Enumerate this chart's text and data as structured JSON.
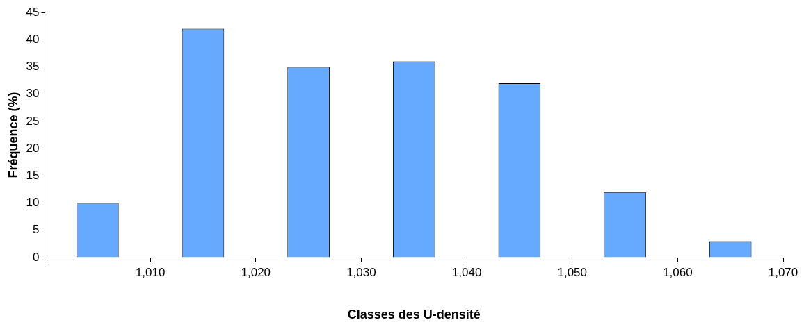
{
  "chart_data": {
    "type": "bar",
    "xlabel": "Classes des U-densité",
    "ylabel": "Fréquence (%)",
    "categories": [
      "1,010",
      "1,020",
      "1,030",
      "1,040",
      "1,050",
      "1,060",
      "1,070"
    ],
    "values": [
      10,
      42,
      35,
      36,
      32,
      12,
      3
    ],
    "color": "#66aaff",
    "ylim": [
      0,
      45
    ],
    "yticks": [
      0,
      5,
      10,
      15,
      20,
      25,
      30,
      35,
      40,
      45
    ],
    "grid": false,
    "legend": false
  }
}
